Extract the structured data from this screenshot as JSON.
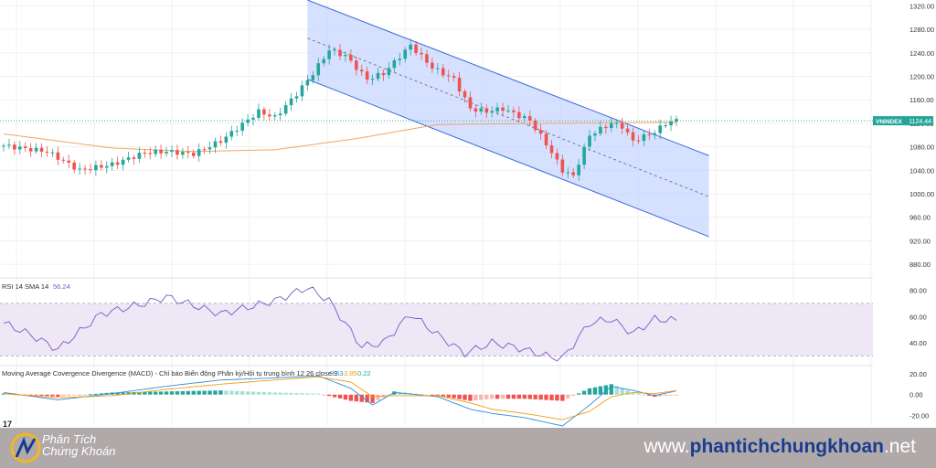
{
  "chart_data": [
    {
      "type": "candlestick",
      "ticker": "VNINDEX",
      "last_value": "1124.44",
      "y_ticks": [
        "1320.00",
        "1280.00",
        "1240.00",
        "1200.00",
        "1160.00",
        "1120.00",
        "1080.00",
        "1040.00",
        "1000.00",
        "960.00",
        "920.00",
        "880.00"
      ],
      "ylim": [
        860,
        1330
      ],
      "y_tick_values": [
        1320,
        1280,
        1240,
        1200,
        1160,
        1120,
        1080,
        1040,
        1000,
        960,
        920,
        880
      ],
      "bar_count": 125,
      "close_path": [
        [
          0,
          1082
        ],
        [
          8,
          1072
        ],
        [
          14,
          1040
        ],
        [
          20,
          1050
        ],
        [
          26,
          1070
        ],
        [
          30,
          1072
        ],
        [
          35,
          1068
        ],
        [
          40,
          1090
        ],
        [
          47,
          1140
        ],
        [
          50,
          1130
        ],
        [
          54,
          1170
        ],
        [
          57,
          1205
        ],
        [
          60,
          1245
        ],
        [
          63,
          1235
        ],
        [
          67,
          1195
        ],
        [
          70,
          1205
        ],
        [
          75,
          1253
        ],
        [
          79,
          1215
        ],
        [
          83,
          1195
        ],
        [
          86,
          1145
        ],
        [
          89,
          1140
        ],
        [
          92,
          1145
        ],
        [
          97,
          1125
        ],
        [
          100,
          1085
        ],
        [
          103,
          1040
        ],
        [
          105,
          1030
        ],
        [
          108,
          1100
        ],
        [
          112,
          1120
        ],
        [
          114,
          1115
        ],
        [
          116,
          1090
        ],
        [
          120,
          1105
        ],
        [
          122,
          1120
        ],
        [
          124,
          1125
        ]
      ],
      "sma_path": [
        [
          0,
          1102
        ],
        [
          20,
          1078
        ],
        [
          35,
          1072
        ],
        [
          50,
          1075
        ],
        [
          65,
          1094
        ],
        [
          80,
          1118
        ],
        [
          100,
          1120
        ],
        [
          124,
          1122
        ]
      ],
      "channel": {
        "upper": [
          [
            56,
            1330
          ],
          [
            130,
            1065
          ]
        ],
        "middle": [
          [
            56,
            1265
          ],
          [
            130,
            995
          ]
        ],
        "lower": [
          [
            56,
            1195
          ],
          [
            130,
            927
          ]
        ]
      },
      "colors": {
        "up": "#26a69a",
        "down": "#ef5350",
        "channel_fill": "#bfd1ff",
        "channel_line": "#3d6bdb",
        "sma": "#f4a560"
      }
    },
    {
      "type": "line",
      "title": "RSI 14 SMA 14",
      "value": "56.24",
      "y_ticks": [
        "80.00",
        "60.00",
        "40.00"
      ],
      "ylim": [
        24,
        88
      ],
      "y_tick_values": [
        80,
        60,
        40
      ],
      "band": [
        30,
        70
      ],
      "path": [
        [
          0,
          55
        ],
        [
          5,
          46
        ],
        [
          10,
          35
        ],
        [
          18,
          62
        ],
        [
          26,
          70
        ],
        [
          30,
          75
        ],
        [
          40,
          62
        ],
        [
          50,
          72
        ],
        [
          56,
          82
        ],
        [
          60,
          72
        ],
        [
          66,
          37
        ],
        [
          70,
          40
        ],
        [
          75,
          62
        ],
        [
          80,
          46
        ],
        [
          85,
          32
        ],
        [
          90,
          40
        ],
        [
          95,
          36
        ],
        [
          100,
          30
        ],
        [
          103,
          28
        ],
        [
          108,
          55
        ],
        [
          112,
          58
        ],
        [
          116,
          47
        ],
        [
          120,
          58
        ],
        [
          124,
          57
        ]
      ],
      "colors": {
        "line": "#7e57c2",
        "band_fill": "#ede7f6",
        "band_line": "#9e9ec4"
      }
    },
    {
      "type": "bar",
      "title": "Moving Average Covergence Divergence (MACD) - Chỉ báo Biến động Phân kỳ/Hội tụ trung bình 12 26 close 9",
      "values_text": [
        "3.63",
        "3.85",
        "0.22"
      ],
      "y_ticks": [
        "20.00",
        "0.00",
        "-20.00"
      ],
      "ylim": [
        -30,
        26
      ],
      "y_tick_values": [
        20,
        0,
        -20
      ],
      "macd_path": [
        [
          0,
          2
        ],
        [
          10,
          -5
        ],
        [
          20,
          1
        ],
        [
          30,
          8
        ],
        [
          40,
          14
        ],
        [
          50,
          16
        ],
        [
          58,
          18
        ],
        [
          64,
          6
        ],
        [
          68,
          -10
        ],
        [
          72,
          2
        ],
        [
          80,
          -2
        ],
        [
          86,
          -14
        ],
        [
          90,
          -18
        ],
        [
          96,
          -22
        ],
        [
          103,
          -30
        ],
        [
          108,
          -10
        ],
        [
          112,
          8
        ],
        [
          116,
          4
        ],
        [
          120,
          -1
        ],
        [
          124,
          3.6
        ]
      ],
      "signal_path": [
        [
          0,
          1
        ],
        [
          10,
          -3
        ],
        [
          20,
          -1
        ],
        [
          30,
          5
        ],
        [
          40,
          10
        ],
        [
          50,
          14
        ],
        [
          58,
          17
        ],
        [
          64,
          12
        ],
        [
          68,
          -2
        ],
        [
          72,
          -1
        ],
        [
          80,
          -1
        ],
        [
          86,
          -8
        ],
        [
          90,
          -14
        ],
        [
          96,
          -18
        ],
        [
          103,
          -24
        ],
        [
          108,
          -16
        ],
        [
          112,
          -2
        ],
        [
          116,
          2
        ],
        [
          120,
          1
        ],
        [
          124,
          3.85
        ]
      ],
      "colors": {
        "macd": "#2f8fd8",
        "signal": "#f39c12",
        "hist_up": "#26a69a",
        "hist_down": "#ef5350",
        "hist_up_light": "#a7dfd6",
        "hist_down_light": "#f7b5b3"
      }
    }
  ],
  "footer": {
    "brand_line1": "Phân Tích",
    "brand_line2": "Chứng Khoán",
    "site_prefix": "www.",
    "site_domain": "phantichchungkhoan",
    "site_tld": ".net",
    "tv_mark": "17"
  }
}
